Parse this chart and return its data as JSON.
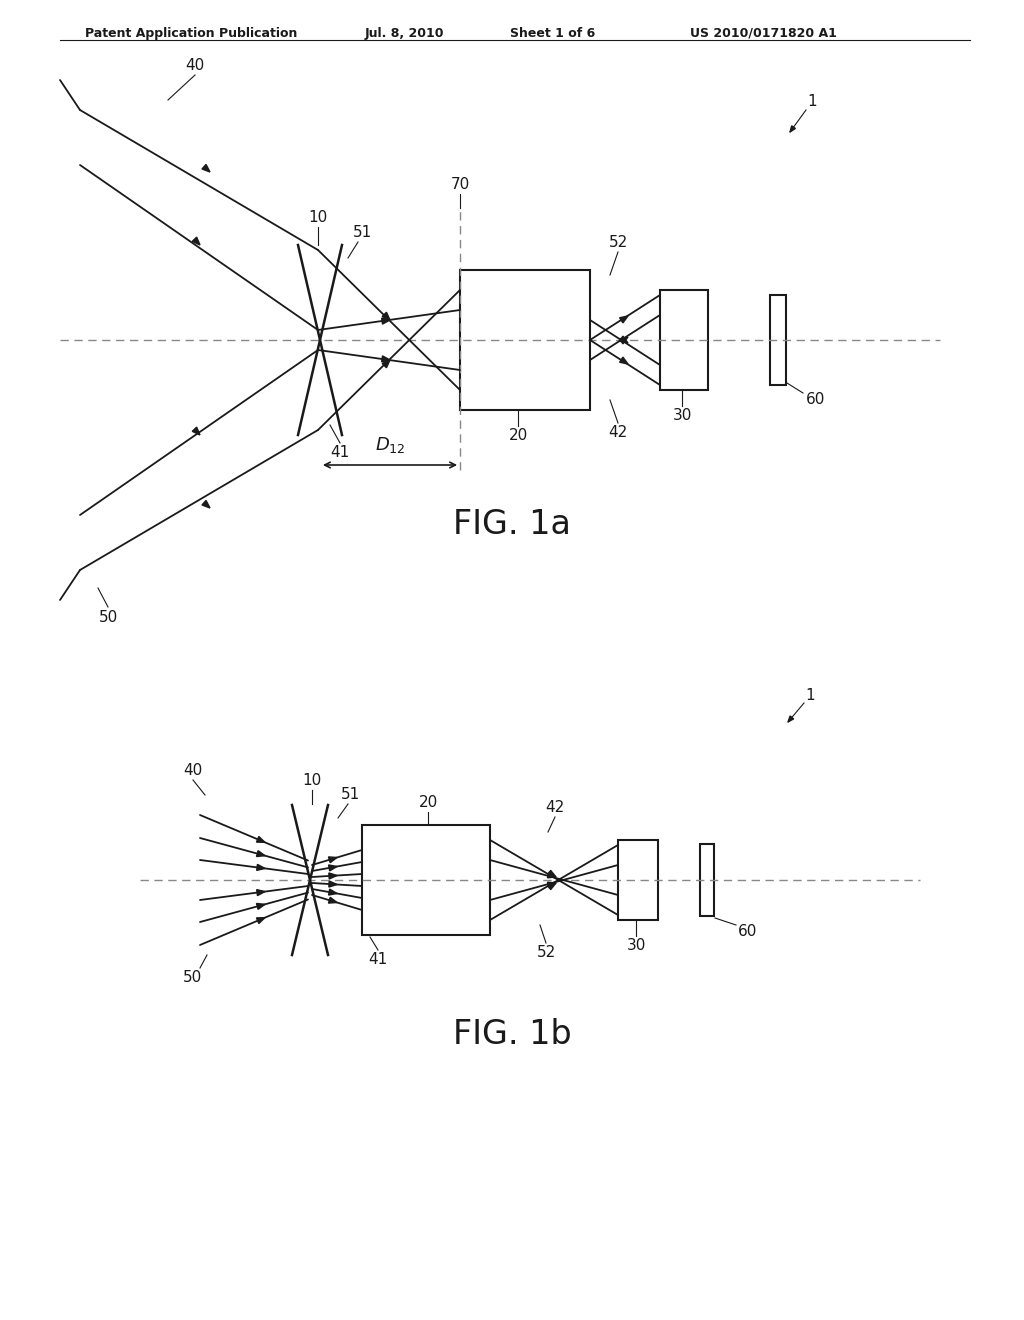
{
  "background_color": "#ffffff",
  "header_text": "Patent Application Publication",
  "header_date": "Jul. 8, 2010",
  "header_sheet": "Sheet 1 of 6",
  "header_patent": "US 2010/0171820 A1",
  "fig1a_title": "FIG. 1a",
  "fig1b_title": "FIG. 1b",
  "text_color": "#1a1a1a",
  "line_color": "#1a1a1a",
  "dashed_color": "#777777"
}
